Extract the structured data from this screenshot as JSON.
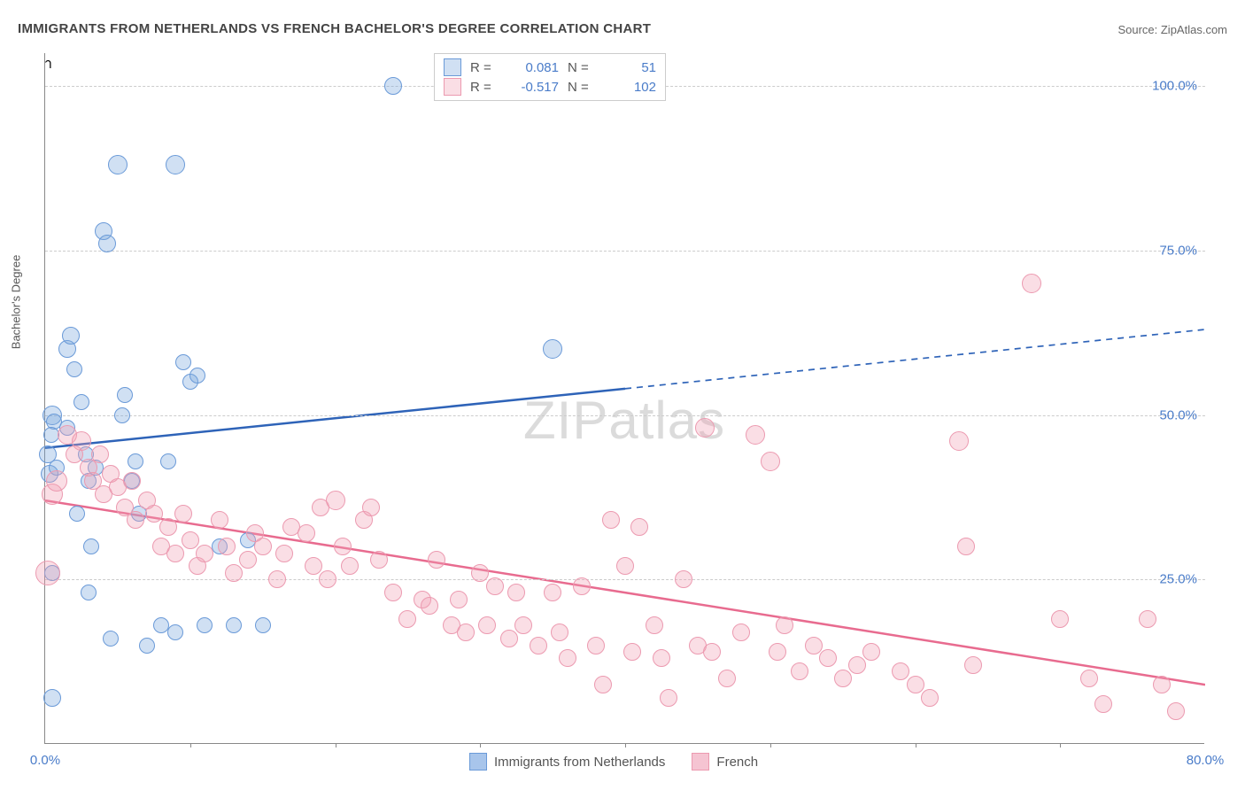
{
  "title": "IMMIGRANTS FROM NETHERLANDS VS FRENCH BACHELOR'S DEGREE CORRELATION CHART",
  "source": "Source: ZipAtlas.com",
  "watermark": "ZIPatlas",
  "ylabel": "Bachelor's Degree",
  "chart": {
    "type": "scatter",
    "xlim": [
      0,
      80
    ],
    "ylim": [
      0,
      105
    ],
    "xticks": [
      {
        "v": 0,
        "label": "0.0%"
      },
      {
        "v": 80,
        "label": "80.0%"
      }
    ],
    "xtick_minor": [
      10,
      20,
      30,
      40,
      50,
      60,
      70
    ],
    "yticks": [
      {
        "v": 25,
        "label": "25.0%"
      },
      {
        "v": 50,
        "label": "50.0%"
      },
      {
        "v": 75,
        "label": "75.0%"
      },
      {
        "v": 100,
        "label": "100.0%"
      }
    ],
    "grid_color": "#cccccc",
    "background_color": "#ffffff",
    "series": [
      {
        "name": "Immigrants from Netherlands",
        "color_fill": "rgba(120,165,220,0.35)",
        "color_stroke": "#6a9ad8",
        "R": "0.081",
        "N": "51",
        "trend": {
          "x1": 0,
          "y1": 45,
          "x2": 80,
          "y2": 63,
          "solid_until_x": 40,
          "color": "#2e63b8",
          "width": 2.5
        },
        "points": [
          {
            "x": 0.2,
            "y": 44,
            "r": 10
          },
          {
            "x": 0.3,
            "y": 41,
            "r": 10
          },
          {
            "x": 0.5,
            "y": 50,
            "r": 11
          },
          {
            "x": 0.6,
            "y": 49,
            "r": 9
          },
          {
            "x": 0.5,
            "y": 26,
            "r": 9
          },
          {
            "x": 0.8,
            "y": 42,
            "r": 9
          },
          {
            "x": 0.4,
            "y": 47,
            "r": 9
          },
          {
            "x": 0.5,
            "y": 7,
            "r": 10
          },
          {
            "x": 1.5,
            "y": 60,
            "r": 10
          },
          {
            "x": 1.8,
            "y": 62,
            "r": 10
          },
          {
            "x": 1.5,
            "y": 48,
            "r": 9
          },
          {
            "x": 2,
            "y": 57,
            "r": 9
          },
          {
            "x": 2.2,
            "y": 35,
            "r": 9
          },
          {
            "x": 2.5,
            "y": 52,
            "r": 9
          },
          {
            "x": 2.8,
            "y": 44,
            "r": 9
          },
          {
            "x": 3,
            "y": 40,
            "r": 9
          },
          {
            "x": 3.5,
            "y": 42,
            "r": 9
          },
          {
            "x": 3,
            "y": 23,
            "r": 9
          },
          {
            "x": 3.2,
            "y": 30,
            "r": 9
          },
          {
            "x": 4,
            "y": 78,
            "r": 10
          },
          {
            "x": 4.3,
            "y": 76,
            "r": 10
          },
          {
            "x": 4.5,
            "y": 16,
            "r": 9
          },
          {
            "x": 5,
            "y": 88,
            "r": 11
          },
          {
            "x": 5.3,
            "y": 50,
            "r": 9
          },
          {
            "x": 5.5,
            "y": 53,
            "r": 9
          },
          {
            "x": 6,
            "y": 40,
            "r": 9
          },
          {
            "x": 6.2,
            "y": 43,
            "r": 9
          },
          {
            "x": 6.5,
            "y": 35,
            "r": 9
          },
          {
            "x": 7,
            "y": 15,
            "r": 9
          },
          {
            "x": 8,
            "y": 18,
            "r": 9
          },
          {
            "x": 8.5,
            "y": 43,
            "r": 9
          },
          {
            "x": 9,
            "y": 88,
            "r": 11
          },
          {
            "x": 9,
            "y": 17,
            "r": 9
          },
          {
            "x": 9.5,
            "y": 58,
            "r": 9
          },
          {
            "x": 10,
            "y": 55,
            "r": 9
          },
          {
            "x": 10.5,
            "y": 56,
            "r": 9
          },
          {
            "x": 11,
            "y": 18,
            "r": 9
          },
          {
            "x": 12,
            "y": 30,
            "r": 9
          },
          {
            "x": 13,
            "y": 18,
            "r": 9
          },
          {
            "x": 14,
            "y": 31,
            "r": 9
          },
          {
            "x": 15,
            "y": 18,
            "r": 9
          },
          {
            "x": 24,
            "y": 100,
            "r": 10
          },
          {
            "x": 35,
            "y": 60,
            "r": 11
          }
        ]
      },
      {
        "name": "French",
        "color_fill": "rgba(240,160,180,0.35)",
        "color_stroke": "#ec9ab0",
        "R": "-0.517",
        "N": "102",
        "trend": {
          "x1": 0,
          "y1": 37,
          "x2": 80,
          "y2": 9,
          "solid_until_x": 80,
          "color": "#e86b8f",
          "width": 2.5
        },
        "points": [
          {
            "x": 0.2,
            "y": 26,
            "r": 14
          },
          {
            "x": 0.5,
            "y": 38,
            "r": 12
          },
          {
            "x": 0.8,
            "y": 40,
            "r": 12
          },
          {
            "x": 1.5,
            "y": 47,
            "r": 11
          },
          {
            "x": 2,
            "y": 44,
            "r": 10
          },
          {
            "x": 2.5,
            "y": 46,
            "r": 11
          },
          {
            "x": 3,
            "y": 42,
            "r": 10
          },
          {
            "x": 3.3,
            "y": 40,
            "r": 10
          },
          {
            "x": 3.8,
            "y": 44,
            "r": 10
          },
          {
            "x": 4,
            "y": 38,
            "r": 10
          },
          {
            "x": 4.5,
            "y": 41,
            "r": 10
          },
          {
            "x": 5,
            "y": 39,
            "r": 10
          },
          {
            "x": 5.5,
            "y": 36,
            "r": 10
          },
          {
            "x": 6,
            "y": 40,
            "r": 10
          },
          {
            "x": 6.2,
            "y": 34,
            "r": 10
          },
          {
            "x": 7,
            "y": 37,
            "r": 10
          },
          {
            "x": 7.5,
            "y": 35,
            "r": 10
          },
          {
            "x": 8,
            "y": 30,
            "r": 10
          },
          {
            "x": 8.5,
            "y": 33,
            "r": 10
          },
          {
            "x": 9,
            "y": 29,
            "r": 10
          },
          {
            "x": 9.5,
            "y": 35,
            "r": 10
          },
          {
            "x": 10,
            "y": 31,
            "r": 10
          },
          {
            "x": 10.5,
            "y": 27,
            "r": 10
          },
          {
            "x": 11,
            "y": 29,
            "r": 10
          },
          {
            "x": 12,
            "y": 34,
            "r": 10
          },
          {
            "x": 12.5,
            "y": 30,
            "r": 10
          },
          {
            "x": 13,
            "y": 26,
            "r": 10
          },
          {
            "x": 14,
            "y": 28,
            "r": 10
          },
          {
            "x": 14.5,
            "y": 32,
            "r": 10
          },
          {
            "x": 15,
            "y": 30,
            "r": 10
          },
          {
            "x": 16,
            "y": 25,
            "r": 10
          },
          {
            "x": 16.5,
            "y": 29,
            "r": 10
          },
          {
            "x": 17,
            "y": 33,
            "r": 10
          },
          {
            "x": 18,
            "y": 32,
            "r": 10
          },
          {
            "x": 18.5,
            "y": 27,
            "r": 10
          },
          {
            "x": 19,
            "y": 36,
            "r": 10
          },
          {
            "x": 19.5,
            "y": 25,
            "r": 10
          },
          {
            "x": 20,
            "y": 37,
            "r": 11
          },
          {
            "x": 20.5,
            "y": 30,
            "r": 10
          },
          {
            "x": 21,
            "y": 27,
            "r": 10
          },
          {
            "x": 22,
            "y": 34,
            "r": 10
          },
          {
            "x": 22.5,
            "y": 36,
            "r": 10
          },
          {
            "x": 23,
            "y": 28,
            "r": 10
          },
          {
            "x": 24,
            "y": 23,
            "r": 10
          },
          {
            "x": 25,
            "y": 19,
            "r": 10
          },
          {
            "x": 26,
            "y": 22,
            "r": 10
          },
          {
            "x": 26.5,
            "y": 21,
            "r": 10
          },
          {
            "x": 27,
            "y": 28,
            "r": 10
          },
          {
            "x": 28,
            "y": 18,
            "r": 10
          },
          {
            "x": 28.5,
            "y": 22,
            "r": 10
          },
          {
            "x": 29,
            "y": 17,
            "r": 10
          },
          {
            "x": 30,
            "y": 26,
            "r": 10
          },
          {
            "x": 30.5,
            "y": 18,
            "r": 10
          },
          {
            "x": 31,
            "y": 24,
            "r": 10
          },
          {
            "x": 32,
            "y": 16,
            "r": 10
          },
          {
            "x": 32.5,
            "y": 23,
            "r": 10
          },
          {
            "x": 33,
            "y": 18,
            "r": 10
          },
          {
            "x": 34,
            "y": 15,
            "r": 10
          },
          {
            "x": 35,
            "y": 23,
            "r": 10
          },
          {
            "x": 35.5,
            "y": 17,
            "r": 10
          },
          {
            "x": 36,
            "y": 13,
            "r": 10
          },
          {
            "x": 37,
            "y": 24,
            "r": 10
          },
          {
            "x": 38,
            "y": 15,
            "r": 10
          },
          {
            "x": 38.5,
            "y": 9,
            "r": 10
          },
          {
            "x": 39,
            "y": 34,
            "r": 10
          },
          {
            "x": 40,
            "y": 27,
            "r": 10
          },
          {
            "x": 40.5,
            "y": 14,
            "r": 10
          },
          {
            "x": 41,
            "y": 33,
            "r": 10
          },
          {
            "x": 42,
            "y": 18,
            "r": 10
          },
          {
            "x": 42.5,
            "y": 13,
            "r": 10
          },
          {
            "x": 43,
            "y": 7,
            "r": 10
          },
          {
            "x": 44,
            "y": 25,
            "r": 10
          },
          {
            "x": 45,
            "y": 15,
            "r": 10
          },
          {
            "x": 45.5,
            "y": 48,
            "r": 11
          },
          {
            "x": 46,
            "y": 14,
            "r": 10
          },
          {
            "x": 47,
            "y": 10,
            "r": 10
          },
          {
            "x": 48,
            "y": 17,
            "r": 10
          },
          {
            "x": 49,
            "y": 47,
            "r": 11
          },
          {
            "x": 50,
            "y": 43,
            "r": 11
          },
          {
            "x": 50.5,
            "y": 14,
            "r": 10
          },
          {
            "x": 51,
            "y": 18,
            "r": 10
          },
          {
            "x": 52,
            "y": 11,
            "r": 10
          },
          {
            "x": 53,
            "y": 15,
            "r": 10
          },
          {
            "x": 54,
            "y": 13,
            "r": 10
          },
          {
            "x": 55,
            "y": 10,
            "r": 10
          },
          {
            "x": 56,
            "y": 12,
            "r": 10
          },
          {
            "x": 57,
            "y": 14,
            "r": 10
          },
          {
            "x": 59,
            "y": 11,
            "r": 10
          },
          {
            "x": 60,
            "y": 9,
            "r": 10
          },
          {
            "x": 61,
            "y": 7,
            "r": 10
          },
          {
            "x": 63,
            "y": 46,
            "r": 11
          },
          {
            "x": 63.5,
            "y": 30,
            "r": 10
          },
          {
            "x": 64,
            "y": 12,
            "r": 10
          },
          {
            "x": 68,
            "y": 70,
            "r": 11
          },
          {
            "x": 70,
            "y": 19,
            "r": 10
          },
          {
            "x": 72,
            "y": 10,
            "r": 10
          },
          {
            "x": 73,
            "y": 6,
            "r": 10
          },
          {
            "x": 76,
            "y": 19,
            "r": 10
          },
          {
            "x": 77,
            "y": 9,
            "r": 10
          },
          {
            "x": 78,
            "y": 5,
            "r": 10
          }
        ]
      }
    ]
  },
  "legend_bottom": [
    {
      "swatch_fill": "#a8c5eb",
      "swatch_stroke": "#6a9ad8",
      "label": "Immigrants from Netherlands"
    },
    {
      "swatch_fill": "#f5c4d2",
      "swatch_stroke": "#ec9ab0",
      "label": "French"
    }
  ]
}
